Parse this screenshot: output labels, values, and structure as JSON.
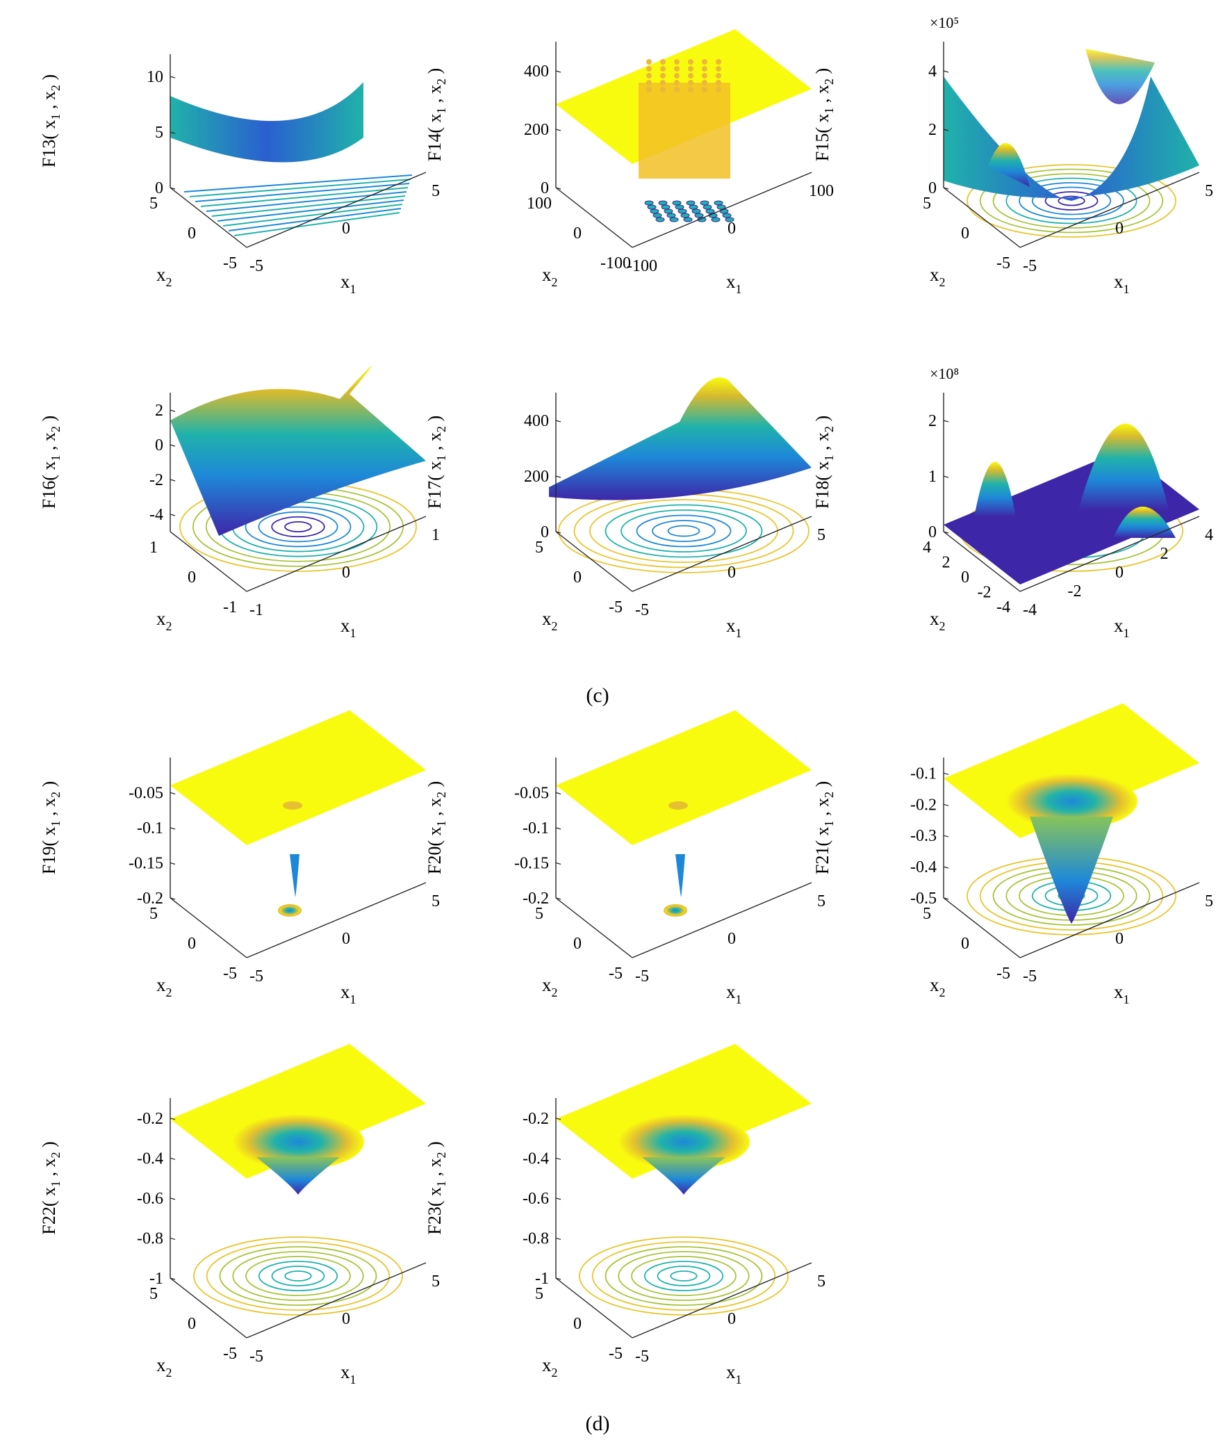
{
  "captions": [
    "(c)",
    "(d)"
  ],
  "colors": {
    "low": "#3e26a8",
    "mid": "#20b2aa",
    "high": "#f9fb0e",
    "axis": "#262626"
  },
  "chart_data": [
    {
      "id": "F13",
      "type": "surface",
      "zlabel": "F13",
      "zticks": [
        "0",
        "5",
        "10"
      ],
      "zlim": [
        0,
        12
      ],
      "xticks": [
        "-5",
        "0",
        "5"
      ],
      "yticks": [
        "-5",
        "0",
        "5"
      ],
      "multiplier": "",
      "contours": true,
      "shape": "multimodal-ridged-bowl"
    },
    {
      "id": "F14",
      "type": "surface",
      "zlabel": "F14",
      "zticks": [
        "0",
        "200",
        "400"
      ],
      "zlim": [
        0,
        500
      ],
      "xticks": [
        "-100",
        "0",
        "100"
      ],
      "yticks": [
        "-100",
        "0",
        "100"
      ],
      "multiplier": "",
      "contours": true,
      "shape": "flat-plateau-with-spike-grid"
    },
    {
      "id": "F15",
      "type": "surface",
      "zlabel": "F15",
      "zticks": [
        "0",
        "2",
        "4"
      ],
      "zlim": [
        0,
        5
      ],
      "xticks": [
        "-5",
        "0",
        "5"
      ],
      "yticks": [
        "-5",
        "0",
        "5"
      ],
      "multiplier": "×10⁵",
      "contours": true,
      "shape": "bowl-with-raised-corners"
    },
    {
      "id": "F16",
      "type": "surface",
      "zlabel": "F16",
      "zticks": [
        "-4",
        "-2",
        "0",
        "2"
      ],
      "zlim": [
        -5,
        3
      ],
      "xticks": [
        "-1",
        "0",
        "1"
      ],
      "yticks": [
        "-1",
        "0",
        "1"
      ],
      "multiplier": "",
      "contours": true,
      "shape": "six-hump-camel"
    },
    {
      "id": "F17",
      "type": "surface",
      "zlabel": "F17",
      "zticks": [
        "0",
        "200",
        "400"
      ],
      "zlim": [
        0,
        500
      ],
      "xticks": [
        "-5",
        "0",
        "5"
      ],
      "yticks": [
        "-5",
        "0",
        "5"
      ],
      "multiplier": "",
      "contours": true,
      "shape": "branin-valley"
    },
    {
      "id": "F18",
      "type": "surface",
      "zlabel": "F18",
      "zticks": [
        "0",
        "1",
        "2"
      ],
      "zlim": [
        0,
        2.5
      ],
      "xticks": [
        "-4",
        "-2",
        "0",
        "2",
        "4"
      ],
      "yticks": [
        "-4",
        "-2",
        "0",
        "2",
        "4"
      ],
      "multiplier": "×10⁸",
      "contours": true,
      "shape": "goldstein-price-peaks"
    },
    {
      "id": "F19",
      "type": "surface",
      "zlabel": "F19",
      "zticks": [
        "-0.2",
        "-0.15",
        "-0.1",
        "-0.05"
      ],
      "zlim": [
        -0.2,
        0
      ],
      "xticks": [
        "-5",
        "0",
        "5"
      ],
      "yticks": [
        "-5",
        "0",
        "5"
      ],
      "multiplier": "",
      "contours": true,
      "shape": "flat-with-narrow-well"
    },
    {
      "id": "F20",
      "type": "surface",
      "zlabel": "F20",
      "zticks": [
        "-0.2",
        "-0.15",
        "-0.1",
        "-0.05"
      ],
      "zlim": [
        -0.2,
        0
      ],
      "xticks": [
        "-5",
        "0",
        "5"
      ],
      "yticks": [
        "-5",
        "0",
        "5"
      ],
      "multiplier": "",
      "contours": true,
      "shape": "flat-with-narrow-well"
    },
    {
      "id": "F21",
      "type": "surface",
      "zlabel": "F21",
      "zticks": [
        "-0.5",
        "-0.4",
        "-0.3",
        "-0.2",
        "-0.1"
      ],
      "zlim": [
        -0.5,
        -0.05
      ],
      "xticks": [
        "-5",
        "0",
        "5"
      ],
      "yticks": [
        "-5",
        "0",
        "5"
      ],
      "multiplier": "",
      "contours": true,
      "shape": "funnel-well"
    },
    {
      "id": "F22",
      "type": "surface",
      "zlabel": "F22",
      "zticks": [
        "-1",
        "-0.8",
        "-0.6",
        "-0.4",
        "-0.2"
      ],
      "zlim": [
        -1,
        -0.1
      ],
      "xticks": [
        "-5",
        "0",
        "5"
      ],
      "yticks": [
        "-5",
        "0",
        "5"
      ],
      "multiplier": "",
      "contours": true,
      "shape": "shallow-well"
    },
    {
      "id": "F23",
      "type": "surface",
      "zlabel": "F23",
      "zticks": [
        "-1",
        "-0.8",
        "-0.6",
        "-0.4",
        "-0.2"
      ],
      "zlim": [
        -1,
        -0.1
      ],
      "xticks": [
        "-5",
        "0",
        "5"
      ],
      "yticks": [
        "-5",
        "0",
        "5"
      ],
      "multiplier": "",
      "contours": true,
      "shape": "shallow-well"
    }
  ]
}
